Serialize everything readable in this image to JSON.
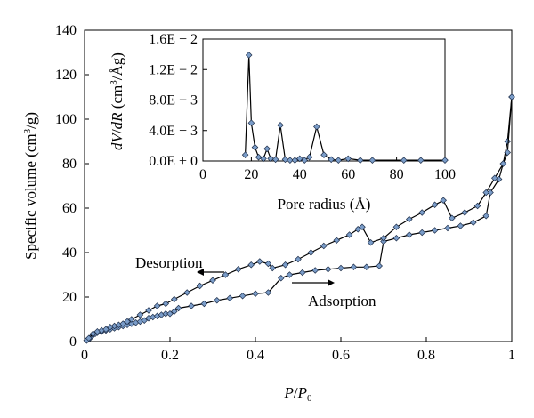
{
  "chart_data": [
    {
      "type": "line",
      "xlabel": "P/P0",
      "ylabel": "Specific volume (cm3/g)",
      "xlim": [
        0,
        1
      ],
      "ylim": [
        0,
        140
      ],
      "x_ticks": [
        "0",
        "0.2",
        "0.4",
        "0.6",
        "0.8",
        "1"
      ],
      "y_ticks": [
        "0",
        "20",
        "40",
        "60",
        "80",
        "100",
        "120",
        "140"
      ],
      "grid": false,
      "legend": "none",
      "marker": "diamond",
      "marker_color": "#7a9cc8",
      "line_color": "#000000",
      "annotations": [
        {
          "text": "Desorption",
          "arrow": "left",
          "x": 0.22,
          "y": 40
        },
        {
          "text": "Adsorption",
          "arrow": "right",
          "x": 0.55,
          "y": 30
        }
      ],
      "series": [
        {
          "values_xy": [
            [
              0.005,
              0.5
            ],
            [
              0.01,
              1.0
            ],
            [
              0.015,
              2.0
            ],
            [
              0.02,
              3.0
            ],
            [
              0.025,
              3.5
            ],
            [
              0.03,
              4.0
            ],
            [
              0.04,
              4.5
            ],
            [
              0.05,
              5.0
            ],
            [
              0.06,
              5.5
            ],
            [
              0.07,
              6.0
            ],
            [
              0.08,
              6.5
            ],
            [
              0.09,
              7.0
            ],
            [
              0.1,
              7.5
            ],
            [
              0.11,
              8.0
            ],
            [
              0.12,
              8.5
            ],
            [
              0.13,
              9.0
            ],
            [
              0.14,
              9.5
            ],
            [
              0.15,
              10.5
            ],
            [
              0.16,
              11.0
            ],
            [
              0.17,
              11.5
            ],
            [
              0.18,
              12.0
            ],
            [
              0.19,
              12.5
            ],
            [
              0.2,
              12.5
            ],
            [
              0.21,
              13.5
            ],
            [
              0.22,
              15.0
            ],
            [
              0.25,
              16.0
            ],
            [
              0.28,
              17.0
            ],
            [
              0.31,
              18.5
            ],
            [
              0.34,
              19.5
            ],
            [
              0.37,
              20.5
            ],
            [
              0.4,
              21.5
            ],
            [
              0.43,
              22.0
            ],
            [
              0.46,
              28.5
            ],
            [
              0.48,
              30.0
            ],
            [
              0.51,
              31.0
            ],
            [
              0.54,
              32.0
            ],
            [
              0.57,
              32.5
            ],
            [
              0.6,
              33.0
            ],
            [
              0.63,
              33.5
            ],
            [
              0.66,
              33.5
            ],
            [
              0.69,
              34.0
            ],
            [
              0.7,
              45.0
            ],
            [
              0.73,
              46.5
            ],
            [
              0.76,
              48.0
            ],
            [
              0.79,
              49.0
            ],
            [
              0.82,
              50.0
            ],
            [
              0.85,
              51.0
            ],
            [
              0.88,
              52.0
            ],
            [
              0.91,
              53.5
            ],
            [
              0.94,
              56.5
            ],
            [
              0.95,
              67.0
            ],
            [
              0.97,
              73.0
            ],
            [
              0.98,
              80.0
            ],
            [
              0.99,
              90.0
            ],
            [
              1.0,
              110.0
            ]
          ]
        },
        {
          "values_xy": [
            [
              0.005,
              0.5
            ],
            [
              0.01,
              1.5
            ],
            [
              0.02,
              3.5
            ],
            [
              0.03,
              4.5
            ],
            [
              0.04,
              5.0
            ],
            [
              0.05,
              5.5
            ],
            [
              0.06,
              6.5
            ],
            [
              0.07,
              7.0
            ],
            [
              0.08,
              7.5
            ],
            [
              0.09,
              8.0
            ],
            [
              0.1,
              9.0
            ],
            [
              0.11,
              10.0
            ],
            [
              0.13,
              12.0
            ],
            [
              0.15,
              14.0
            ],
            [
              0.17,
              16.0
            ],
            [
              0.19,
              17.0
            ],
            [
              0.21,
              19.0
            ],
            [
              0.24,
              22.0
            ],
            [
              0.27,
              25.0
            ],
            [
              0.3,
              27.5
            ],
            [
              0.33,
              30.0
            ],
            [
              0.36,
              32.5
            ],
            [
              0.39,
              34.5
            ],
            [
              0.41,
              36.0
            ],
            [
              0.43,
              35.0
            ],
            [
              0.44,
              33.0
            ],
            [
              0.47,
              34.5
            ],
            [
              0.5,
              37.0
            ],
            [
              0.53,
              40.0
            ],
            [
              0.56,
              43.0
            ],
            [
              0.59,
              45.5
            ],
            [
              0.62,
              48.0
            ],
            [
              0.64,
              50.5
            ],
            [
              0.65,
              51.5
            ],
            [
              0.67,
              44.5
            ],
            [
              0.7,
              46.5
            ],
            [
              0.73,
              51.5
            ],
            [
              0.76,
              55.0
            ],
            [
              0.79,
              58.0
            ],
            [
              0.82,
              61.5
            ],
            [
              0.84,
              63.5
            ],
            [
              0.86,
              55.5
            ],
            [
              0.89,
              58.0
            ],
            [
              0.92,
              61.0
            ],
            [
              0.94,
              67.0
            ],
            [
              0.96,
              73.5
            ],
            [
              0.98,
              80.0
            ],
            [
              0.99,
              85.0
            ],
            [
              1.0,
              110.0
            ]
          ]
        }
      ]
    },
    {
      "type": "line",
      "xlabel": "Pore radius (Å)",
      "ylabel": "dV/dR (cm3/Åg)",
      "xlim": [
        0,
        100
      ],
      "ylim": [
        0,
        0.016
      ],
      "x_ticks": [
        "0",
        "20",
        "40",
        "60",
        "80",
        "100"
      ],
      "y_ticks": [
        "0.0E + 0",
        "4.0E − 3",
        "8.0E − 3",
        "1.2E − 2",
        "1.6E − 2"
      ],
      "grid": false,
      "legend": "none",
      "marker": "diamond",
      "marker_color": "#7a9cc8",
      "line_color": "#000000",
      "series": [
        {
          "values_xy": [
            [
              17.5,
              0.0008
            ],
            [
              19,
              0.0139
            ],
            [
              20,
              0.005
            ],
            [
              21.5,
              0.0018
            ],
            [
              23,
              0.0005
            ],
            [
              25,
              0.0003
            ],
            [
              26.5,
              0.0016
            ],
            [
              28,
              0.0003
            ],
            [
              30,
              0.0002
            ],
            [
              32,
              0.0047
            ],
            [
              34,
              0.0002
            ],
            [
              36,
              0.0001
            ],
            [
              38,
              0.0001
            ],
            [
              40,
              0.0003
            ],
            [
              42,
              0.0001
            ],
            [
              44,
              0.0005
            ],
            [
              47,
              0.0045
            ],
            [
              50,
              0.0008
            ],
            [
              53,
              0.0002
            ],
            [
              56,
              0.0001
            ],
            [
              60,
              0.0003
            ],
            [
              65,
              0.0001
            ],
            [
              70,
              0.0001
            ],
            [
              83,
              0.0001
            ],
            [
              90,
              0.0001
            ],
            [
              100,
              0.0001
            ]
          ]
        }
      ]
    }
  ]
}
